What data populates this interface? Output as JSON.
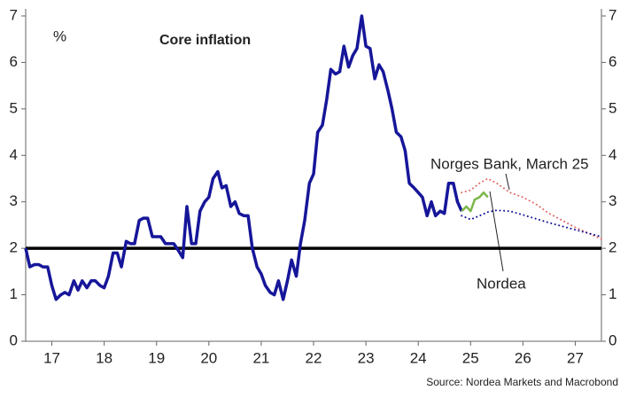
{
  "chart_data": {
    "type": "line",
    "title": "Core inflation",
    "y_label": "%",
    "source": "Source: Nordea Markets and Macrobond",
    "annotations": [
      "Norges Bank, March 25",
      "Nordea"
    ],
    "xlim": [
      2017,
      2028
    ],
    "xticks": [
      {
        "value": 2017.5,
        "label": "17"
      },
      {
        "value": 2018.5,
        "label": "18"
      },
      {
        "value": 2019.5,
        "label": "19"
      },
      {
        "value": 2020.5,
        "label": "20"
      },
      {
        "value": 2021.5,
        "label": "21"
      },
      {
        "value": 2022.5,
        "label": "22"
      },
      {
        "value": 2023.5,
        "label": "23"
      },
      {
        "value": 2024.5,
        "label": "24"
      },
      {
        "value": 2025.5,
        "label": "25"
      },
      {
        "value": 2026.5,
        "label": "26"
      },
      {
        "value": 2027.5,
        "label": "27"
      }
    ],
    "ylim": [
      0,
      7
    ],
    "yticks": [
      0,
      1,
      2,
      3,
      4,
      5,
      6,
      7
    ],
    "y2lim": [
      0,
      7
    ],
    "y2ticks": [
      0,
      1,
      2,
      3,
      4,
      5,
      6,
      7
    ],
    "reference_line": 2,
    "grid": false,
    "series": [
      {
        "color": "#16169a",
        "dashed": false,
        "width": 3.5,
        "x": [
          2017.0,
          2017.08,
          2017.17,
          2017.25,
          2017.33,
          2017.42,
          2017.5,
          2017.58,
          2017.67,
          2017.75,
          2017.83,
          2017.92,
          2018.0,
          2018.08,
          2018.17,
          2018.25,
          2018.33,
          2018.42,
          2018.5,
          2018.58,
          2018.67,
          2018.75,
          2018.83,
          2018.92,
          2019.0,
          2019.08,
          2019.17,
          2019.25,
          2019.33,
          2019.42,
          2019.5,
          2019.58,
          2019.67,
          2019.75,
          2019.83,
          2019.92,
          2020.0,
          2020.08,
          2020.17,
          2020.25,
          2020.33,
          2020.42,
          2020.5,
          2020.58,
          2020.67,
          2020.75,
          2020.83,
          2020.92,
          2021.0,
          2021.08,
          2021.17,
          2021.25,
          2021.33,
          2021.42,
          2021.5,
          2021.58,
          2021.67,
          2021.75,
          2021.83,
          2021.92,
          2022.0,
          2022.08,
          2022.17,
          2022.25,
          2022.33,
          2022.42,
          2022.5,
          2022.58,
          2022.67,
          2022.75,
          2022.83,
          2022.92,
          2023.0,
          2023.08,
          2023.17,
          2023.25,
          2023.33,
          2023.42,
          2023.5,
          2023.58,
          2023.67,
          2023.75,
          2023.83,
          2023.92,
          2024.0,
          2024.08,
          2024.17,
          2024.25,
          2024.33,
          2024.42,
          2024.5,
          2024.58,
          2024.67,
          2024.75,
          2024.83,
          2024.92,
          2025.0,
          2025.08,
          2025.17,
          2025.25,
          2025.33
        ],
        "values": [
          2.0,
          1.6,
          1.65,
          1.65,
          1.6,
          1.6,
          1.2,
          0.9,
          1.0,
          1.05,
          1.0,
          1.3,
          1.1,
          1.3,
          1.15,
          1.3,
          1.3,
          1.2,
          1.15,
          1.4,
          1.9,
          1.9,
          1.6,
          2.15,
          2.1,
          2.1,
          2.6,
          2.65,
          2.65,
          2.25,
          2.25,
          2.25,
          2.1,
          2.1,
          2.1,
          1.95,
          1.8,
          2.9,
          2.1,
          2.1,
          2.8,
          3.0,
          3.1,
          3.5,
          3.65,
          3.3,
          3.35,
          2.9,
          3.0,
          2.75,
          2.7,
          2.7,
          2.0,
          1.6,
          1.45,
          1.2,
          1.05,
          1.0,
          1.3,
          0.9,
          1.3,
          1.75,
          1.4,
          2.1,
          2.6,
          3.4,
          3.6,
          4.5,
          4.65,
          5.2,
          5.85,
          5.75,
          5.8,
          6.35,
          5.9,
          6.15,
          6.3,
          7.0,
          6.35,
          6.3,
          5.65,
          5.95,
          5.8,
          5.4,
          5.0,
          4.5,
          4.4,
          4.1,
          3.4,
          3.3,
          3.2,
          3.1,
          2.7,
          3.0,
          2.7,
          2.8,
          2.75,
          3.4,
          3.4,
          3.0,
          2.8
        ]
      },
      {
        "name": "Norges Bank, March 25",
        "color": "#e06a6a",
        "dashed": true,
        "width": 2,
        "x": [
          2025.33,
          2025.5,
          2025.67,
          2025.83,
          2026.0,
          2026.25,
          2026.5,
          2026.75,
          2027.0,
          2027.5,
          2028.0
        ],
        "values": [
          3.2,
          3.25,
          3.4,
          3.5,
          3.4,
          3.2,
          3.1,
          2.95,
          2.75,
          2.45,
          2.2
        ]
      },
      {
        "color": "#16169a",
        "dashed": true,
        "width": 2,
        "x": [
          2025.33,
          2025.5,
          2025.67,
          2025.83,
          2026.0,
          2026.25,
          2026.5,
          2027.0,
          2027.5,
          2028.0
        ],
        "values": [
          2.7,
          2.62,
          2.7,
          2.78,
          2.82,
          2.8,
          2.72,
          2.55,
          2.4,
          2.25
        ]
      },
      {
        "name": "Nordea",
        "color": "#7ab648",
        "dashed": false,
        "width": 2.5,
        "x": [
          2025.33,
          2025.42,
          2025.5,
          2025.58,
          2025.67,
          2025.75,
          2025.83
        ],
        "values": [
          2.8,
          2.9,
          2.8,
          3.05,
          3.1,
          3.2,
          3.1
        ]
      }
    ]
  }
}
